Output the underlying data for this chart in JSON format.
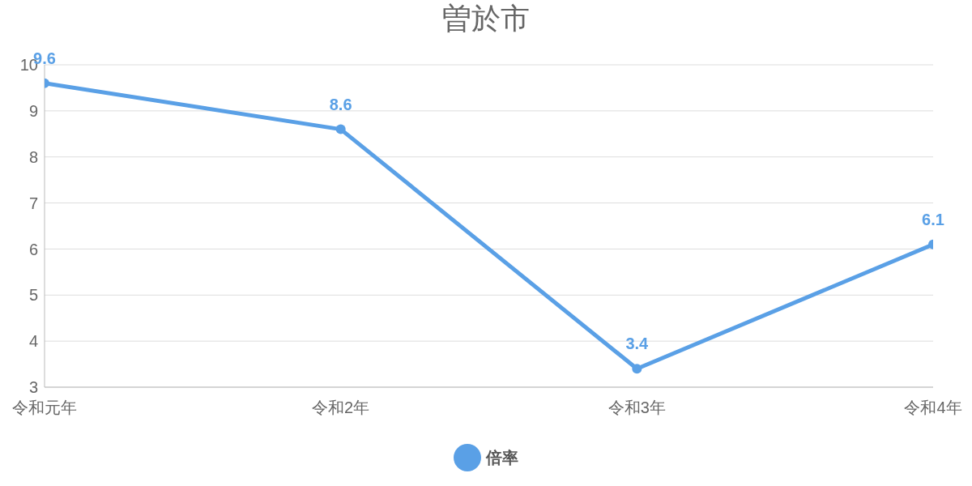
{
  "chart_data": {
    "type": "line",
    "title": "曽於市",
    "categories": [
      "令和元年",
      "令和2年",
      "令和3年",
      "令和4年"
    ],
    "series": [
      {
        "name": "倍率",
        "color": "#5aa0e6",
        "values": [
          9.6,
          8.6,
          3.4,
          6.1
        ]
      }
    ],
    "ylim": [
      3,
      10
    ],
    "yticks": [
      3,
      4,
      5,
      6,
      7,
      8,
      9,
      10
    ],
    "grid": "y",
    "legend": "bottom",
    "marker": "circle",
    "data_labels": true
  }
}
